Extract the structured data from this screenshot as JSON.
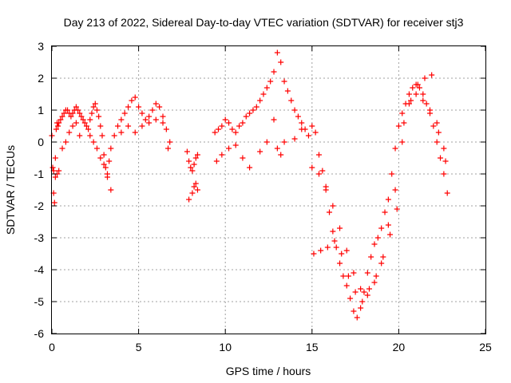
{
  "chart_data": {
    "type": "scatter",
    "title": "Day 213 of 2022, Sidereal Day-to-day VTEC variation (SDTVAR) for receiver stj3",
    "xlabel": "GPS time / hours",
    "ylabel": "SDTVAR / TECUs",
    "xlim": [
      0,
      25
    ],
    "ylim": [
      -6,
      3
    ],
    "xticks": [
      "0",
      "5",
      "10",
      "15",
      "20",
      "25"
    ],
    "yticks": [
      "3",
      "2",
      "1",
      "0",
      "-1",
      "-2",
      "-3",
      "-4",
      "-5",
      "-6"
    ],
    "grid": true,
    "marker": "+",
    "colors": {
      "series": "#ff0000",
      "grid": "#a0a0a0",
      "axis": "#000000"
    },
    "series": [
      {
        "name": "SDTVAR",
        "x": [
          0.0,
          0.05,
          0.1,
          0.15,
          0.2,
          0.25,
          0.3,
          0.35,
          0.4,
          0.5,
          0.6,
          0.7,
          0.8,
          0.9,
          1.0,
          1.1,
          1.2,
          1.3,
          1.4,
          1.5,
          1.6,
          1.7,
          1.8,
          1.9,
          2.0,
          2.1,
          2.2,
          2.3,
          2.4,
          2.5,
          2.6,
          2.7,
          2.8,
          2.9,
          3.0,
          3.1,
          3.2,
          3.3,
          3.4,
          3.6,
          3.8,
          4.0,
          4.2,
          4.4,
          4.6,
          4.8,
          5.0,
          5.2,
          5.4,
          5.6,
          5.8,
          6.0,
          6.2,
          6.4,
          6.6,
          6.8,
          0.1,
          0.2,
          0.3,
          0.4,
          0.6,
          0.8,
          1.0,
          1.2,
          1.4,
          1.6,
          2.2,
          2.4,
          2.6,
          2.8,
          3.0,
          3.2,
          3.4,
          4.0,
          4.4,
          4.8,
          5.2,
          5.6,
          6.0,
          6.4,
          6.7,
          7.8,
          7.9,
          8.0,
          8.1,
          8.2,
          8.3,
          8.4,
          7.9,
          8.1,
          8.2,
          8.3,
          8.4,
          9.4,
          9.6,
          9.8,
          10.0,
          10.2,
          10.4,
          10.6,
          10.8,
          11.0,
          11.2,
          11.4,
          11.6,
          11.8,
          12.0,
          12.2,
          12.4,
          12.6,
          12.8,
          13.0,
          13.2,
          13.4,
          13.6,
          13.8,
          14.0,
          14.2,
          14.4,
          14.6,
          14.8,
          9.5,
          9.8,
          10.2,
          10.6,
          11.0,
          11.4,
          12.0,
          12.4,
          12.8,
          13.0,
          13.2,
          13.4,
          14.0,
          14.4,
          15.0,
          15.2,
          15.4,
          15.6,
          15.8,
          16.0,
          16.2,
          16.4,
          16.6,
          16.8,
          17.0,
          17.2,
          17.4,
          17.6,
          17.8,
          18.0,
          18.2,
          18.4,
          18.6,
          18.8,
          19.0,
          19.2,
          19.4,
          19.6,
          19.8,
          20.0,
          20.2,
          20.4,
          20.6,
          20.8,
          21.0,
          21.2,
          21.4,
          21.6,
          21.8,
          22.0,
          22.2,
          22.4,
          22.6,
          22.8,
          15.0,
          15.4,
          15.8,
          16.2,
          16.6,
          17.0,
          17.4,
          17.8,
          18.2,
          18.6,
          19.0,
          19.4,
          19.8,
          20.2,
          20.6,
          21.0,
          21.4,
          21.8,
          22.2,
          22.6,
          15.1,
          15.5,
          15.9,
          16.3,
          16.7,
          17.1,
          17.5,
          17.9,
          18.3,
          18.7,
          19.1,
          19.5,
          19.9,
          20.3,
          20.7,
          21.1,
          21.5,
          21.9,
          22.3,
          22.7
        ],
        "y": [
          0.2,
          -0.8,
          -1.6,
          -1.9,
          -0.5,
          0.4,
          0.6,
          0.5,
          0.6,
          0.7,
          0.8,
          0.9,
          1.0,
          1.0,
          0.9,
          0.8,
          0.9,
          1.0,
          1.1,
          1.0,
          0.9,
          0.8,
          0.7,
          0.6,
          0.5,
          0.4,
          0.7,
          0.9,
          1.1,
          1.2,
          1.0,
          0.8,
          0.5,
          0.2,
          -0.4,
          -0.8,
          -1.0,
          -0.6,
          -0.2,
          0.2,
          0.5,
          0.7,
          0.9,
          1.1,
          1.3,
          1.4,
          1.1,
          0.9,
          0.7,
          0.8,
          1.0,
          1.2,
          1.1,
          0.8,
          0.4,
          0.0,
          -0.9,
          -1.1,
          -1.0,
          -0.9,
          -0.2,
          0.0,
          0.3,
          0.5,
          0.6,
          0.2,
          0.2,
          0.0,
          -0.2,
          -0.5,
          -0.7,
          -1.1,
          -1.5,
          0.3,
          0.5,
          0.3,
          0.5,
          0.6,
          0.7,
          0.6,
          -0.2,
          -0.3,
          -0.6,
          -0.8,
          -0.9,
          -0.7,
          -0.5,
          -0.4,
          -1.8,
          -1.6,
          -1.4,
          -1.3,
          -1.5,
          0.3,
          0.4,
          0.5,
          0.7,
          0.6,
          0.4,
          0.3,
          0.5,
          0.6,
          0.8,
          0.9,
          1.0,
          1.1,
          1.3,
          1.5,
          1.7,
          1.9,
          2.2,
          2.8,
          2.5,
          1.9,
          1.6,
          1.3,
          1.0,
          0.8,
          0.6,
          0.4,
          0.2,
          -0.6,
          -0.4,
          -0.2,
          -0.1,
          -0.5,
          -0.8,
          -0.3,
          0.0,
          0.7,
          -0.2,
          -0.4,
          0.0,
          0.1,
          0.4,
          0.5,
          0.3,
          -0.4,
          -0.9,
          -1.5,
          -2.2,
          -2.8,
          -3.3,
          -3.8,
          -4.2,
          -4.5,
          -4.9,
          -5.3,
          -5.5,
          -5.2,
          -4.7,
          -4.1,
          -3.6,
          -3.2,
          -3.0,
          -2.7,
          -2.2,
          -1.8,
          -1.0,
          -0.2,
          0.5,
          0.9,
          1.2,
          1.5,
          1.7,
          1.8,
          1.7,
          1.5,
          1.2,
          0.9,
          0.5,
          0.0,
          -0.5,
          -1.0,
          -1.6,
          -0.8,
          -1.0,
          -1.4,
          -2.0,
          -2.7,
          -3.4,
          -4.1,
          -4.6,
          -4.8,
          -4.4,
          -3.8,
          -2.6,
          -1.5,
          0.0,
          1.2,
          1.5,
          1.3,
          1.0,
          0.6,
          -0.2,
          -3.5,
          -3.4,
          -3.3,
          -3.1,
          -3.5,
          -4.2,
          -4.7,
          -5.0,
          -4.6,
          -4.2,
          -3.6,
          -2.9,
          -2.1,
          0.6,
          1.3,
          1.8,
          2.0,
          2.1,
          0.3,
          -0.6
        ]
      }
    ]
  }
}
